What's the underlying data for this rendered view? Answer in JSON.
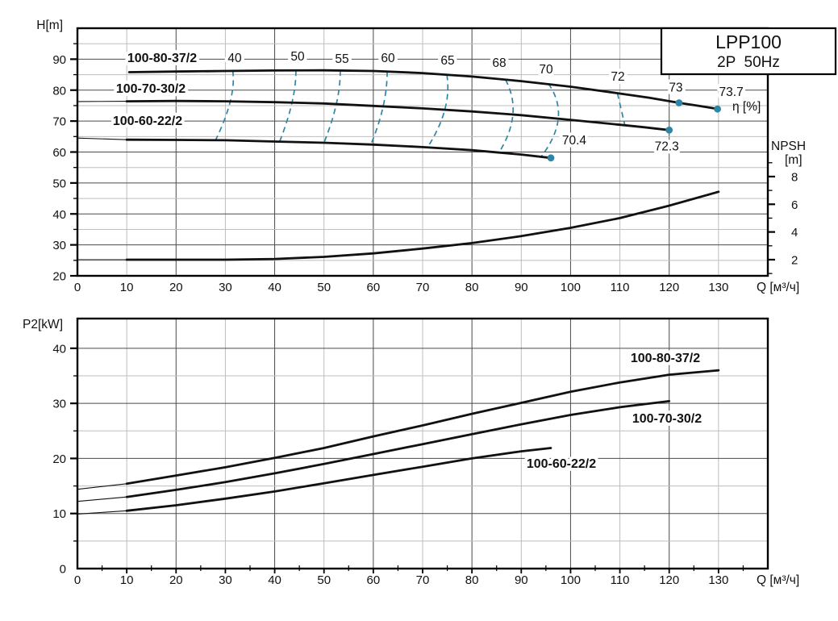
{
  "window": {
    "title_box": {
      "model": "LPP100",
      "spec": "2P  50Hz"
    }
  },
  "colors": {
    "accent_teal": "#2e86a7",
    "curve_black": "#111111",
    "grid_major": "#4a4a4a",
    "grid_minor": "#bdbdbd",
    "axis_black": "#000000",
    "background": "#ffffff"
  },
  "chart_data": [
    {
      "type": "line",
      "name": "head-efficiency-npsh-chart",
      "ylabel": "H[m]",
      "xlabel": "Q [м³/ч]",
      "y2label_line1": "NPSH",
      "y2label_line2": "[m]",
      "eta_label": "η [%]",
      "xlim": [
        0,
        140
      ],
      "ylim": [
        20,
        100
      ],
      "y2lim_note": "NPSH axis: 2..8 labeled, minor ticks at odd values",
      "x_ticks": [
        0,
        10,
        20,
        30,
        40,
        50,
        60,
        70,
        80,
        90,
        100,
        110,
        120,
        130
      ],
      "y_ticks": [
        20,
        30,
        40,
        50,
        60,
        70,
        80,
        90
      ],
      "y2_ticks": [
        2,
        4,
        6,
        8
      ],
      "y2_minor_ticks": [
        1,
        3,
        5,
        7,
        9
      ],
      "grid": "on",
      "series": [
        {
          "name": "100-80-37/2",
          "axis": "H",
          "thin_until": null,
          "points": [
            [
              10.5,
              85.8
            ],
            [
              20,
              86.0
            ],
            [
              30,
              86.2
            ],
            [
              40,
              86.35
            ],
            [
              50,
              86.4
            ],
            [
              60,
              86.2
            ],
            [
              70,
              85.5
            ],
            [
              80,
              84.4
            ],
            [
              90,
              82.9
            ],
            [
              100,
              81.1
            ],
            [
              110,
              78.9
            ],
            [
              116,
              77.5
            ],
            [
              122,
              75.9
            ],
            [
              126,
              74.9
            ],
            [
              130,
              73.9
            ]
          ]
        },
        {
          "name": "100-70-30/2",
          "axis": "H",
          "thin_until": 10,
          "points": [
            [
              0,
              76.3
            ],
            [
              10,
              76.4
            ],
            [
              20,
              76.5
            ],
            [
              30,
              76.4
            ],
            [
              40,
              76.1
            ],
            [
              50,
              75.7
            ],
            [
              60,
              74.9
            ],
            [
              70,
              74.1
            ],
            [
              80,
              73.1
            ],
            [
              90,
              71.9
            ],
            [
              100,
              70.4
            ],
            [
              110,
              68.8
            ],
            [
              115,
              68.0
            ],
            [
              120,
              67.1
            ]
          ]
        },
        {
          "name": "100-60-22/2",
          "axis": "H",
          "thin_until": 10,
          "points": [
            [
              0,
              64.5
            ],
            [
              10,
              64.0
            ],
            [
              20,
              63.9
            ],
            [
              30,
              63.8
            ],
            [
              40,
              63.4
            ],
            [
              50,
              63.0
            ],
            [
              60,
              62.4
            ],
            [
              70,
              61.6
            ],
            [
              80,
              60.6
            ],
            [
              90,
              59.2
            ],
            [
              96,
              58.1
            ]
          ]
        },
        {
          "name": "NPSH",
          "axis": "NPSH",
          "thin_until": 10,
          "points": [
            [
              0,
              2.0
            ],
            [
              10,
              2.0
            ],
            [
              20,
              2.0
            ],
            [
              30,
              2.0
            ],
            [
              40,
              2.05
            ],
            [
              50,
              2.2
            ],
            [
              60,
              2.45
            ],
            [
              70,
              2.8
            ],
            [
              80,
              3.2
            ],
            [
              90,
              3.7
            ],
            [
              100,
              4.3
            ],
            [
              110,
              5.0
            ],
            [
              120,
              5.9
            ],
            [
              130,
              6.9
            ]
          ]
        }
      ],
      "efficiency_contours": [
        {
          "label": "40",
          "points_qh": [
            [
              31.5,
              86.3
            ],
            [
              31,
              76.4
            ],
            [
              28,
              63.8
            ]
          ]
        },
        {
          "label": "50",
          "points_qh": [
            [
              44.3,
              86.4
            ],
            [
              43.5,
              75.9
            ],
            [
              41,
              63.4
            ]
          ]
        },
        {
          "label": "55",
          "points_qh": [
            [
              53.3,
              86.4
            ],
            [
              52.5,
              75.5
            ],
            [
              50,
              63.0
            ]
          ]
        },
        {
          "label": "60",
          "points_qh": [
            [
              62.8,
              86.1
            ],
            [
              62,
              74.8
            ],
            [
              59.5,
              62.4
            ]
          ]
        },
        {
          "label": "65",
          "points_qh": [
            [
              74.9,
              85.0
            ],
            [
              74.5,
              73.7
            ],
            [
              71,
              61.5
            ]
          ]
        },
        {
          "label": "68",
          "points_qh": [
            [
              86.8,
              83.4
            ],
            [
              88.3,
              72.1
            ],
            [
              85.5,
              59.9
            ]
          ]
        },
        {
          "label": "70",
          "points_qh": [
            [
              95.5,
              82.1
            ],
            [
              97.5,
              70.8
            ],
            [
              94,
              58.4
            ]
          ]
        },
        {
          "label": "72",
          "points_qh": [
            [
              109.5,
              79.0
            ],
            [
              111,
              68.7
            ]
          ]
        }
      ],
      "efficiency_markers": [
        {
          "label": "73",
          "q": 122,
          "h": 75.9
        },
        {
          "label": "73.7",
          "q": 129.8,
          "h": 73.9
        },
        {
          "label": "72.3",
          "q": 120,
          "h": 67.1
        },
        {
          "label": "70.4",
          "q": 96,
          "h": 58.1
        }
      ]
    },
    {
      "type": "line",
      "name": "power-chart",
      "ylabel": "P2[kW]",
      "xlabel": "Q [м³/ч]",
      "xlim": [
        0,
        140
      ],
      "ylim": [
        0,
        45
      ],
      "x_ticks": [
        0,
        10,
        20,
        30,
        40,
        50,
        60,
        70,
        80,
        90,
        100,
        110,
        120,
        130
      ],
      "y_ticks": [
        0,
        10,
        20,
        30,
        40
      ],
      "grid": "on",
      "series": [
        {
          "name": "100-80-37/2",
          "thin_until": 10,
          "points": [
            [
              0,
              14.4
            ],
            [
              10,
              15.4
            ],
            [
              20,
              16.9
            ],
            [
              30,
              18.4
            ],
            [
              40,
              20.1
            ],
            [
              50,
              21.9
            ],
            [
              60,
              24.0
            ],
            [
              70,
              26.0
            ],
            [
              80,
              28.1
            ],
            [
              90,
              30.1
            ],
            [
              100,
              32.1
            ],
            [
              110,
              33.8
            ],
            [
              120,
              35.2
            ],
            [
              130,
              36.0
            ]
          ]
        },
        {
          "name": "100-70-30/2",
          "thin_until": 10,
          "points": [
            [
              0,
              12.2
            ],
            [
              10,
              13.0
            ],
            [
              20,
              14.3
            ],
            [
              30,
              15.7
            ],
            [
              40,
              17.3
            ],
            [
              50,
              19.0
            ],
            [
              60,
              20.8
            ],
            [
              70,
              22.6
            ],
            [
              80,
              24.4
            ],
            [
              90,
              26.2
            ],
            [
              100,
              27.9
            ],
            [
              110,
              29.3
            ],
            [
              120,
              30.4
            ]
          ]
        },
        {
          "name": "100-60-22/2",
          "thin_until": 10,
          "points": [
            [
              0,
              9.9
            ],
            [
              10,
              10.5
            ],
            [
              20,
              11.5
            ],
            [
              30,
              12.7
            ],
            [
              40,
              14.0
            ],
            [
              50,
              15.5
            ],
            [
              60,
              17.0
            ],
            [
              70,
              18.5
            ],
            [
              80,
              20.0
            ],
            [
              90,
              21.3
            ],
            [
              96,
              21.9
            ]
          ]
        }
      ]
    }
  ]
}
